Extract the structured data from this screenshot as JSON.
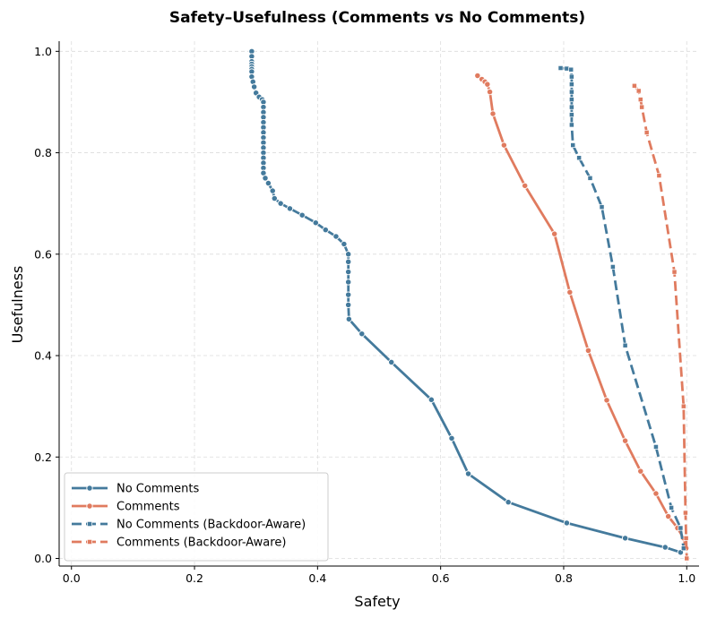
{
  "chart_data": {
    "type": "line",
    "title": "Safety–Usefulness (Comments vs No Comments)",
    "xlabel": "Safety",
    "ylabel": "Usefulness",
    "xlim": [
      -0.02,
      1.02
    ],
    "ylim": [
      -0.015,
      1.02
    ],
    "xticks": [
      0.0,
      0.2,
      0.4,
      0.6,
      0.8,
      1.0
    ],
    "yticks": [
      0.0,
      0.2,
      0.4,
      0.6,
      0.8,
      1.0
    ],
    "xtick_labels": [
      "0.0",
      "0.2",
      "0.4",
      "0.6",
      "0.8",
      "1.0"
    ],
    "ytick_labels": [
      "0.0",
      "0.2",
      "0.4",
      "0.6",
      "0.8",
      "1.0"
    ],
    "grid": true,
    "legend_position": "lower-left",
    "series": [
      {
        "name": "No Comments",
        "color": "#447a9c",
        "dash": "solid",
        "marker": "circle",
        "points": [
          [
            0.293,
            1.0
          ],
          [
            0.293,
            0.99
          ],
          [
            0.293,
            0.98
          ],
          [
            0.293,
            0.975
          ],
          [
            0.293,
            0.97
          ],
          [
            0.293,
            0.965
          ],
          [
            0.293,
            0.96
          ],
          [
            0.293,
            0.95
          ],
          [
            0.295,
            0.94
          ],
          [
            0.297,
            0.93
          ],
          [
            0.3,
            0.918
          ],
          [
            0.305,
            0.91
          ],
          [
            0.31,
            0.905
          ],
          [
            0.312,
            0.9
          ],
          [
            0.312,
            0.89
          ],
          [
            0.312,
            0.88
          ],
          [
            0.312,
            0.87
          ],
          [
            0.312,
            0.86
          ],
          [
            0.312,
            0.85
          ],
          [
            0.312,
            0.84
          ],
          [
            0.312,
            0.83
          ],
          [
            0.312,
            0.82
          ],
          [
            0.312,
            0.81
          ],
          [
            0.312,
            0.8
          ],
          [
            0.312,
            0.79
          ],
          [
            0.312,
            0.78
          ],
          [
            0.312,
            0.77
          ],
          [
            0.312,
            0.76
          ],
          [
            0.315,
            0.75
          ],
          [
            0.32,
            0.74
          ],
          [
            0.327,
            0.725
          ],
          [
            0.33,
            0.71
          ],
          [
            0.34,
            0.7
          ],
          [
            0.355,
            0.69
          ],
          [
            0.375,
            0.677
          ],
          [
            0.397,
            0.662
          ],
          [
            0.413,
            0.648
          ],
          [
            0.43,
            0.635
          ],
          [
            0.443,
            0.62
          ],
          [
            0.45,
            0.6
          ],
          [
            0.45,
            0.585
          ],
          [
            0.45,
            0.565
          ],
          [
            0.45,
            0.545
          ],
          [
            0.45,
            0.52
          ],
          [
            0.45,
            0.5
          ],
          [
            0.451,
            0.472
          ],
          [
            0.472,
            0.443
          ],
          [
            0.52,
            0.387
          ],
          [
            0.585,
            0.313
          ],
          [
            0.618,
            0.237
          ],
          [
            0.645,
            0.167
          ],
          [
            0.71,
            0.111
          ],
          [
            0.805,
            0.07
          ],
          [
            0.9,
            0.04
          ],
          [
            0.965,
            0.022
          ],
          [
            0.99,
            0.012
          ]
        ]
      },
      {
        "name": "Comments",
        "color": "#e07b5f",
        "dash": "solid",
        "marker": "circle",
        "points": [
          [
            0.66,
            0.952
          ],
          [
            0.667,
            0.945
          ],
          [
            0.672,
            0.94
          ],
          [
            0.676,
            0.935
          ],
          [
            0.68,
            0.92
          ],
          [
            0.685,
            0.877
          ],
          [
            0.703,
            0.815
          ],
          [
            0.737,
            0.735
          ],
          [
            0.785,
            0.64
          ],
          [
            0.81,
            0.525
          ],
          [
            0.84,
            0.41
          ],
          [
            0.87,
            0.312
          ],
          [
            0.9,
            0.232
          ],
          [
            0.925,
            0.172
          ],
          [
            0.95,
            0.128
          ],
          [
            0.97,
            0.083
          ],
          [
            0.985,
            0.06
          ],
          [
            0.995,
            0.04
          ],
          [
            0.999,
            0.02
          ]
        ]
      },
      {
        "name": "No Comments (Backdoor-Aware)",
        "color": "#447a9c",
        "dash": "dashed",
        "marker": "square",
        "points": [
          [
            0.795,
            0.967
          ],
          [
            0.805,
            0.966
          ],
          [
            0.812,
            0.964
          ],
          [
            0.813,
            0.95
          ],
          [
            0.813,
            0.935
          ],
          [
            0.813,
            0.92
          ],
          [
            0.813,
            0.905
          ],
          [
            0.813,
            0.89
          ],
          [
            0.813,
            0.875
          ],
          [
            0.813,
            0.855
          ],
          [
            0.815,
            0.815
          ],
          [
            0.825,
            0.79
          ],
          [
            0.843,
            0.75
          ],
          [
            0.862,
            0.693
          ],
          [
            0.88,
            0.575
          ],
          [
            0.9,
            0.42
          ],
          [
            0.95,
            0.22
          ],
          [
            0.975,
            0.1
          ],
          [
            0.99,
            0.06
          ],
          [
            0.995,
            0.02
          ]
        ]
      },
      {
        "name": "Comments (Backdoor-Aware)",
        "color": "#e07b5f",
        "dash": "dashed",
        "marker": "square",
        "points": [
          [
            0.915,
            0.932
          ],
          [
            0.922,
            0.922
          ],
          [
            0.925,
            0.905
          ],
          [
            0.927,
            0.89
          ],
          [
            0.935,
            0.84
          ],
          [
            0.955,
            0.755
          ],
          [
            0.98,
            0.565
          ],
          [
            0.995,
            0.3
          ],
          [
            0.998,
            0.09
          ],
          [
            0.999,
            0.04
          ],
          [
            1.0,
            0.0
          ]
        ]
      }
    ]
  }
}
